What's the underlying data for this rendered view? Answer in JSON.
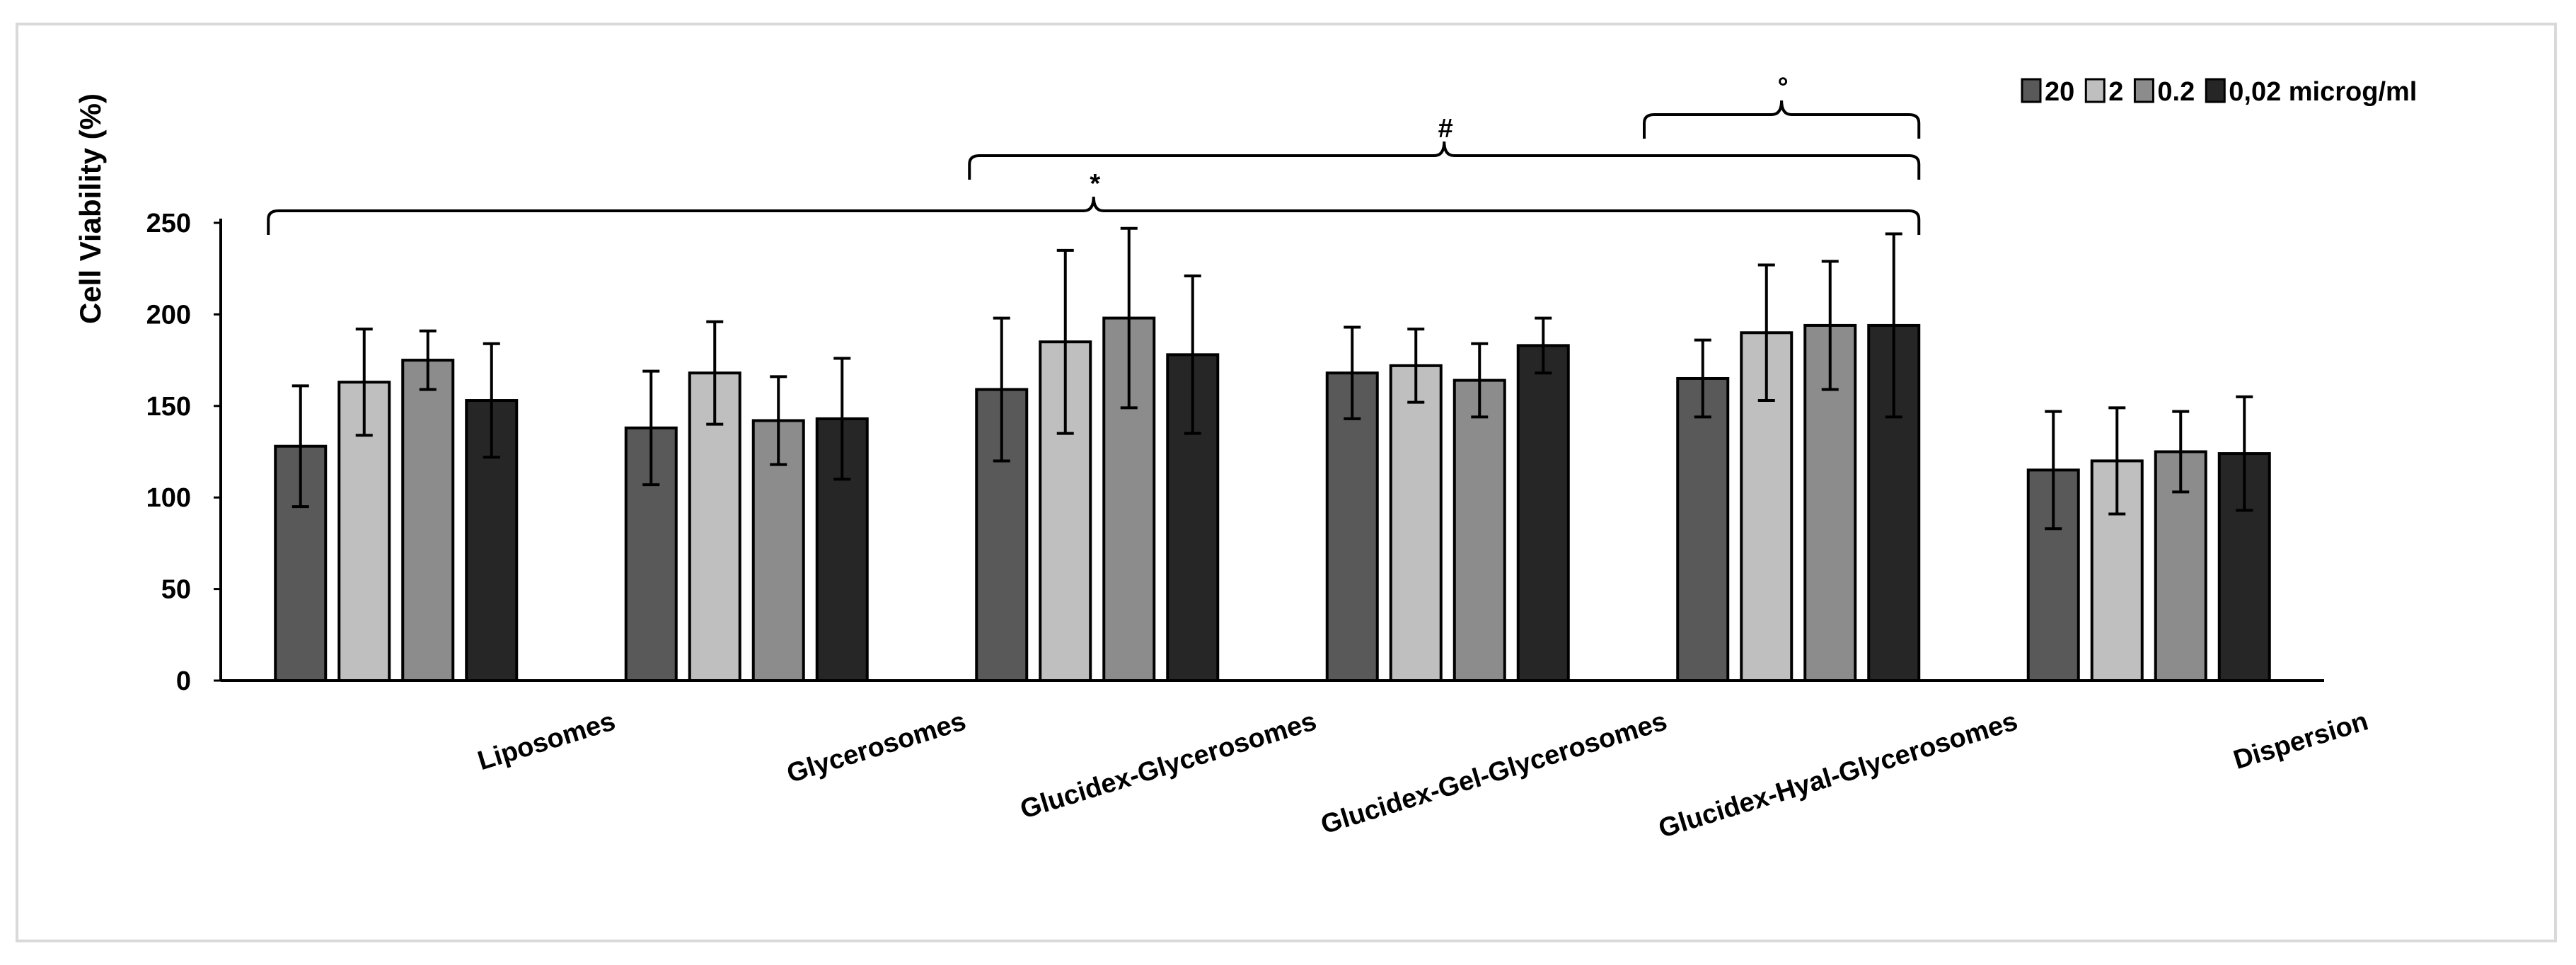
{
  "chart_data": {
    "type": "bar",
    "title": "",
    "xlabel": "",
    "ylabel": "Cell Viability (%)",
    "ylim": [
      0,
      250
    ],
    "yticks": [
      0,
      50,
      100,
      150,
      200,
      250
    ],
    "grid": false,
    "legend_position": "top-right",
    "categories": [
      "Liposomes",
      "Glycerosomes",
      "Glucidex-Glycerosomes",
      "Glucidex-Gel-Glycerosomes",
      "Glucidex-Hyal-Glycerosomes",
      "Dispersion"
    ],
    "series": [
      {
        "name": "20",
        "color": "#595959",
        "values": [
          128,
          138,
          159,
          168,
          165,
          115
        ],
        "errors": [
          33,
          31,
          39,
          25,
          21,
          32
        ]
      },
      {
        "name": "2",
        "color": "#bfbfbf",
        "values": [
          163,
          168,
          185,
          172,
          190,
          120
        ],
        "errors": [
          29,
          28,
          50,
          20,
          37,
          29
        ]
      },
      {
        "name": "0.2",
        "color": "#8c8c8c",
        "values": [
          175,
          142,
          198,
          164,
          194,
          125
        ],
        "errors": [
          16,
          24,
          49,
          20,
          35,
          22
        ]
      },
      {
        "name": "0,02 microg/ml",
        "color": "#262626",
        "values": [
          153,
          143,
          178,
          183,
          194,
          124
        ],
        "errors": [
          31,
          33,
          43,
          15,
          50,
          31
        ]
      }
    ],
    "annotations": [
      {
        "symbol": "*",
        "from_category": "Liposomes",
        "to_category": "Glucidex-Hyal-Glycerosomes"
      },
      {
        "symbol": "#",
        "from_category": "Glucidex-Glycerosomes",
        "to_category": "Glucidex-Hyal-Glycerosomes"
      },
      {
        "symbol": "°",
        "from_category": "Glucidex-Hyal-Glycerosomes",
        "to_category": "Glucidex-Hyal-Glycerosomes"
      }
    ]
  }
}
